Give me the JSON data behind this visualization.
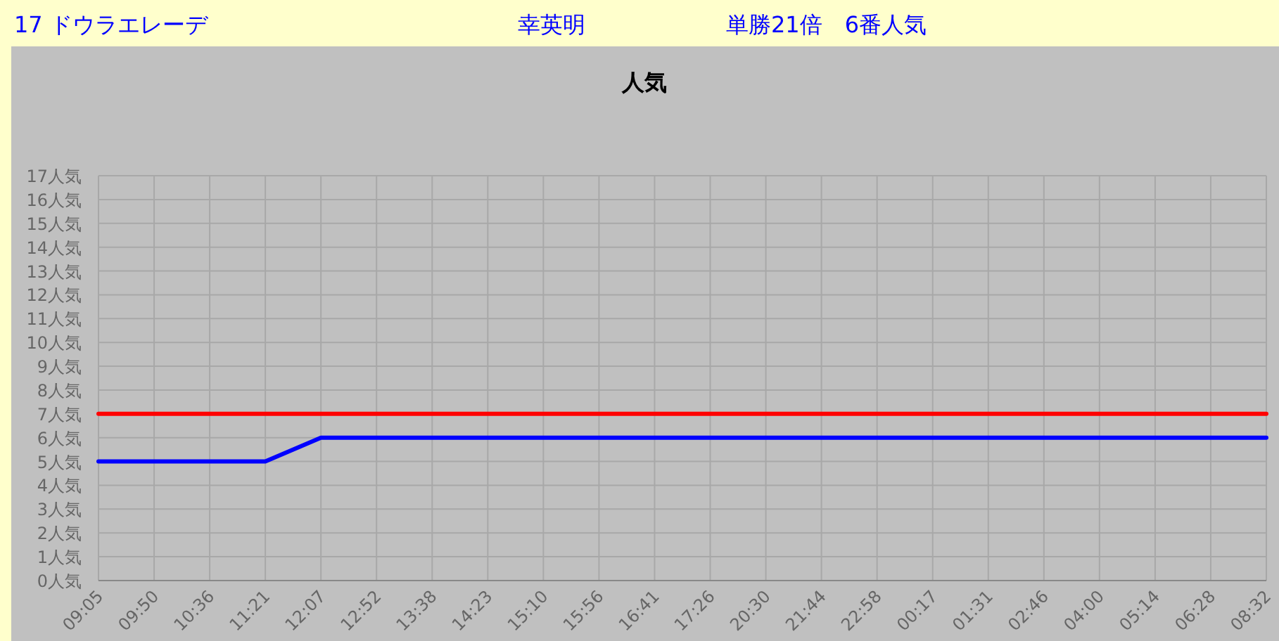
{
  "chart_data": {
    "type": "line",
    "title": "人気",
    "annotations": [
      "17 ドウラエレーデ",
      "幸英明",
      "単勝21倍　6番人気"
    ],
    "categories": [
      "09:05",
      "09:50",
      "10:36",
      "11:21",
      "12:07",
      "12:52",
      "13:38",
      "14:23",
      "15:10",
      "15:56",
      "16:41",
      "17:26",
      "20:30",
      "21:44",
      "22:58",
      "00:17",
      "01:31",
      "02:46",
      "04:00",
      "05:14",
      "06:28",
      "08:32"
    ],
    "series": [
      {
        "color": "#ff0000",
        "values": [
          7,
          7,
          7,
          7,
          7,
          7,
          7,
          7,
          7,
          7,
          7,
          7,
          7,
          7,
          7,
          7,
          7,
          7,
          7,
          7,
          7,
          7
        ]
      },
      {
        "color": "#0000ff",
        "values": [
          5,
          5,
          5,
          5,
          6,
          6,
          6,
          6,
          6,
          6,
          6,
          6,
          6,
          6,
          6,
          6,
          6,
          6,
          6,
          6,
          6,
          6
        ]
      }
    ],
    "ylim": [
      0,
      17
    ],
    "yticks": [
      {
        "value": 0,
        "label": "0人気"
      },
      {
        "value": 1,
        "label": "1人気"
      },
      {
        "value": 2,
        "label": "2人気"
      },
      {
        "value": 3,
        "label": "3人気"
      },
      {
        "value": 4,
        "label": "4人気"
      },
      {
        "value": 5,
        "label": "5人気"
      },
      {
        "value": 6,
        "label": "6人気"
      },
      {
        "value": 7,
        "label": "7人気"
      },
      {
        "value": 8,
        "label": "8人気"
      },
      {
        "value": 9,
        "label": "9人気"
      },
      {
        "value": 10,
        "label": "10人気"
      },
      {
        "value": 11,
        "label": "11人気"
      },
      {
        "value": 12,
        "label": "12人気"
      },
      {
        "value": 13,
        "label": "13人気"
      },
      {
        "value": 14,
        "label": "14人気"
      },
      {
        "value": 15,
        "label": "15人気"
      },
      {
        "value": 16,
        "label": "16人気"
      },
      {
        "value": 17,
        "label": "17人気"
      }
    ],
    "grid": true,
    "marker": "none",
    "line_style": "solid"
  }
}
